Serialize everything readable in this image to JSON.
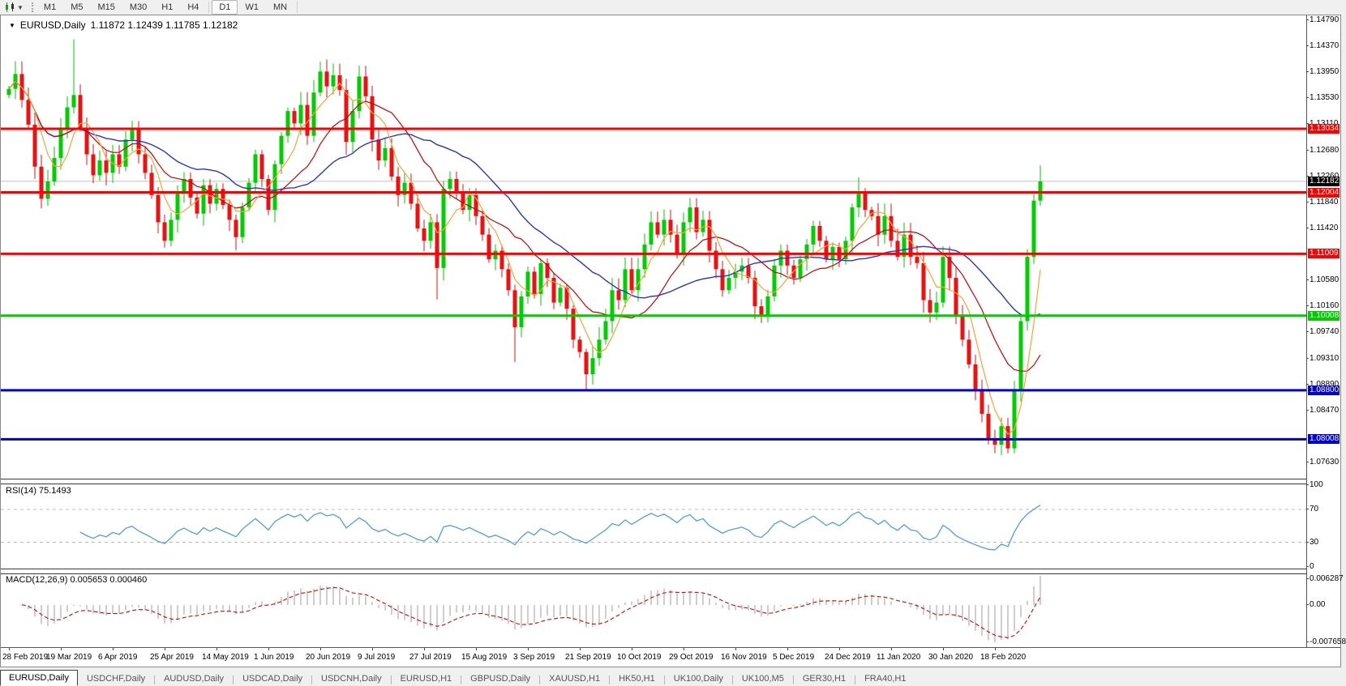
{
  "toolbar": {
    "chart_type_icon": "candlestick-chart-icon",
    "caret_glyph": "▼",
    "timeframes": [
      {
        "label": "M1",
        "active": false
      },
      {
        "label": "M5",
        "active": false
      },
      {
        "label": "M15",
        "active": false
      },
      {
        "label": "M30",
        "active": false
      },
      {
        "label": "H1",
        "active": false
      },
      {
        "label": "H4",
        "active": false
      },
      {
        "label": "D1",
        "active": true
      },
      {
        "label": "W1",
        "active": false
      },
      {
        "label": "MN",
        "active": false
      }
    ]
  },
  "title": {
    "collapse_glyph": "▼",
    "symbol": "EURUSD,Daily",
    "ohlc_text": "1.11872 1.12439 1.11785 1.12182"
  },
  "price_axis_ticks": [
    "1.14790",
    "1.14370",
    "1.13950",
    "1.13530",
    "1.13110",
    "1.12680",
    "1.12260",
    "1.11840",
    "1.11420",
    "1.10580",
    "1.10160",
    "1.09740",
    "1.09310",
    "1.08890",
    "1.08470",
    "1.07630"
  ],
  "rsi_panel": {
    "label": "RSI(14) 75.1493",
    "name": "RSI",
    "period": 14,
    "value": 75.1493,
    "axis_ticks": [
      "100",
      "70",
      "30",
      "0"
    ],
    "levels": [
      70,
      30
    ],
    "line_color": "#4d9fe6"
  },
  "macd_panel": {
    "label": "MACD(12,26,9) 0.005653 0.000460",
    "name": "MACD",
    "params": "12,26,9",
    "macd_value": 0.005653,
    "signal_value": 0.00046,
    "axis_ticks": [
      "0.006287",
      "0.00",
      "-0.007658"
    ],
    "hist_color": "#9e9e9e",
    "signal_color": "#e00000"
  },
  "tabs": [
    {
      "label": "EURUSD,Daily",
      "active": true
    },
    {
      "label": "USDCHF,Daily",
      "active": false
    },
    {
      "label": "AUDUSD,Daily",
      "active": false
    },
    {
      "label": "USDCAD,Daily",
      "active": false
    },
    {
      "label": "USDCNH,Daily",
      "active": false
    },
    {
      "label": "EURUSD,H1",
      "active": false
    },
    {
      "label": "GBPUSD,Daily",
      "active": false
    },
    {
      "label": "XAUUSD,H1",
      "active": false
    },
    {
      "label": "HK50,H1",
      "active": false
    },
    {
      "label": "UK100,Daily",
      "active": false
    },
    {
      "label": "UK100,M5",
      "active": false
    },
    {
      "label": "GER30,H1",
      "active": false
    },
    {
      "label": "FRA40,H1",
      "active": false
    }
  ],
  "colors": {
    "candle_up": "#00cf00",
    "candle_down": "#f01010",
    "ma_fast": "#ffa133",
    "ma_mid": "#cc0000",
    "ma_slow": "#2a35c8",
    "level_red": "#ff0000",
    "level_green": "#00cc00",
    "level_blue": "#0000d8",
    "current_price_line": "#c0c0c0",
    "current_price_badge": "#000000",
    "rsi_line": "#4d9fe6",
    "rsi_grid": "#bbbbbb",
    "macd_hist": "#9e9e9e",
    "macd_signal": "#e00000"
  },
  "chart_data": {
    "type": "candlestick",
    "symbol": "EURUSD",
    "timeframe": "Daily",
    "title": "EURUSD,Daily",
    "ylim": [
      1.0763,
      1.1479
    ],
    "x_dates": [
      "28 Feb 2019",
      "19 Mar 2019",
      "6 Apr 2019",
      "25 Apr 2019",
      "14 May 2019",
      "1 Jun 2019",
      "20 Jun 2019",
      "9 Jul 2019",
      "27 Jul 2019",
      "15 Aug 2019",
      "3 Sep 2019",
      "21 Sep 2019",
      "10 Oct 2019",
      "29 Oct 2019",
      "16 Nov 2019",
      "5 Dec 2019",
      "24 Dec 2019",
      "11 Jan 2020",
      "30 Jan 2020",
      "18 Feb 2020"
    ],
    "closes": [
      1.1368,
      1.1392,
      1.135,
      1.131,
      1.1242,
      1.119,
      1.1218,
      1.1256,
      1.1302,
      1.1338,
      1.1358,
      1.1305,
      1.1262,
      1.1228,
      1.1252,
      1.1232,
      1.1262,
      1.1242,
      1.1286,
      1.1302,
      1.1262,
      1.1232,
      1.1196,
      1.1152,
      1.1122,
      1.1156,
      1.12,
      1.1222,
      1.1192,
      1.1166,
      1.1212,
      1.1182,
      1.1206,
      1.118,
      1.1156,
      1.1128,
      1.1176,
      1.1216,
      1.1262,
      1.1222,
      1.1172,
      1.1246,
      1.1292,
      1.1332,
      1.1312,
      1.1342,
      1.1292,
      1.1362,
      1.1396,
      1.1372,
      1.139,
      1.1366,
      1.1282,
      1.1332,
      1.1388,
      1.1356,
      1.1286,
      1.1252,
      1.1272,
      1.1226,
      1.1196,
      1.1216,
      1.1182,
      1.1142,
      1.1122,
      1.1152,
      1.1078,
      1.1206,
      1.1222,
      1.1202,
      1.1172,
      1.1196,
      1.1162,
      1.1132,
      1.1092,
      1.1106,
      1.1076,
      1.1042,
      1.0982,
      1.1032,
      1.1072,
      1.1036,
      1.1086,
      1.1062,
      1.1022,
      1.1046,
      1.1012,
      1.0962,
      1.0942,
      1.0906,
      1.0932,
      1.0962,
      1.0992,
      1.1042,
      1.1026,
      1.1076,
      1.1042,
      1.1076,
      1.1116,
      1.1152,
      1.1132,
      1.1156,
      1.1132,
      1.1102,
      1.1152,
      1.1176,
      1.1136,
      1.1156,
      1.1106,
      1.1076,
      1.1042,
      1.1062,
      1.1072,
      1.1082,
      1.1062,
      1.1016,
      1.1002,
      1.1032,
      1.1082,
      1.1106,
      1.1082,
      1.1062,
      1.1092,
      1.1116,
      1.1146,
      1.1122,
      1.1092,
      1.1112,
      1.1092,
      1.1122,
      1.1176,
      1.1202,
      1.1172,
      1.1162,
      1.1132,
      1.1162,
      1.1122,
      1.1096,
      1.1132,
      1.1096,
      1.1086,
      1.1026,
      1.1006,
      1.1022,
      1.1096,
      1.1062,
      1.1002,
      1.0962,
      1.0922,
      1.0882,
      1.0842,
      1.0802,
      1.0792,
      1.0822,
      1.0786,
      1.0882,
      1.0992,
      1.1096,
      1.1187,
      1.12182
    ],
    "wick_overrides": {
      "10": [
        1.1448,
        null
      ],
      "24": [
        null,
        1.1111
      ],
      "35": [
        null,
        1.1107
      ],
      "48": [
        1.1412,
        null
      ],
      "66": [
        null,
        1.1027
      ],
      "78": [
        null,
        1.0926
      ],
      "89": [
        null,
        1.0879
      ],
      "116": [
        null,
        1.0989
      ],
      "131": [
        1.1225,
        null
      ],
      "152": [
        null,
        1.0778
      ],
      "154": [
        null,
        1.0778
      ],
      "159": [
        1.12439,
        1.11785
      ]
    },
    "last_candle": {
      "open": 1.11872,
      "high": 1.12439,
      "low": 1.11785,
      "close": 1.12182
    },
    "levels": [
      {
        "label": "1.13034",
        "price": 1.13034,
        "color": "#ff0000"
      },
      {
        "label": "1.12004",
        "price": 1.12004,
        "color": "#ff0000"
      },
      {
        "label": "1.11009",
        "price": 1.11009,
        "color": "#ff0000"
      },
      {
        "label": "1.10008",
        "price": 1.10008,
        "color": "#00cc00"
      },
      {
        "label": "1.08800",
        "price": 1.088,
        "color": "#0000d8"
      },
      {
        "label": "1.08008",
        "price": 1.08008,
        "color": "#0000d8"
      }
    ],
    "current_price": {
      "label": "1.12182",
      "price": 1.12182
    }
  }
}
